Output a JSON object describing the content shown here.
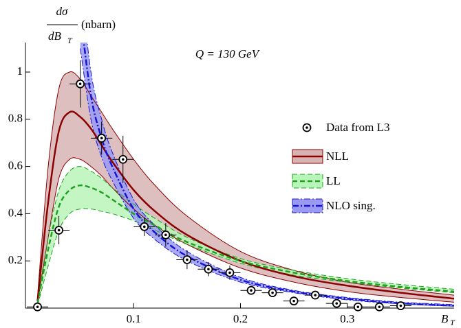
{
  "chart_data": {
    "type": "line",
    "ylabel": {
      "numerator": "dσ",
      "denominator": "dB",
      "denominator_sub": "T",
      "unit": "(nbarn)"
    },
    "xlabel": {
      "main": "B",
      "sub": "T"
    },
    "annotation": "Q = 130 GeV",
    "xlim": [
      -0.0013,
      0.4
    ],
    "ylim": [
      0,
      1.125
    ],
    "xticks": [
      0.1,
      0.2,
      0.3
    ],
    "yticks": [
      0.2,
      0.4,
      0.6,
      0.8,
      1
    ],
    "legend": "right",
    "x": [
      0.01,
      0.02,
      0.03,
      0.04,
      0.05,
      0.06,
      0.07,
      0.08,
      0.1,
      0.12,
      0.15,
      0.2,
      0.25,
      0.3,
      0.35,
      0.4
    ],
    "series": [
      {
        "name": "NLL",
        "color": "#8b0000",
        "band_color": "#d7b4b4",
        "dash": "none",
        "values": [
          0.03,
          0.45,
          0.75,
          0.83,
          0.81,
          0.76,
          0.69,
          0.62,
          0.5,
          0.41,
          0.31,
          0.2,
          0.135,
          0.095,
          0.065,
          0.04
        ],
        "upper": [
          0.05,
          0.6,
          0.93,
          1.0,
          0.97,
          0.9,
          0.83,
          0.76,
          0.63,
          0.52,
          0.39,
          0.24,
          0.16,
          0.11,
          0.08,
          0.055
        ],
        "lower": [
          0.02,
          0.3,
          0.55,
          0.63,
          0.63,
          0.6,
          0.56,
          0.51,
          0.42,
          0.35,
          0.27,
          0.17,
          0.11,
          0.07,
          0.045,
          0.025
        ]
      },
      {
        "name": "LL",
        "color": "#1fa01f",
        "band_color": "#b8f5b8",
        "dash": "7 4",
        "values": [
          0.02,
          0.25,
          0.43,
          0.5,
          0.52,
          0.51,
          0.49,
          0.46,
          0.4,
          0.35,
          0.28,
          0.2,
          0.15,
          0.115,
          0.09,
          0.07
        ],
        "upper": [
          0.03,
          0.3,
          0.5,
          0.58,
          0.6,
          0.58,
          0.55,
          0.51,
          0.44,
          0.38,
          0.3,
          0.21,
          0.16,
          0.125,
          0.1,
          0.08
        ],
        "lower": [
          0.01,
          0.18,
          0.33,
          0.4,
          0.42,
          0.42,
          0.41,
          0.4,
          0.37,
          0.33,
          0.27,
          0.19,
          0.14,
          0.11,
          0.085,
          0.065
        ]
      },
      {
        "name": "NLO sing.",
        "color": "#1414d2",
        "band_color": "#9a9af2",
        "dash": "9 3 2 3",
        "values": [
          null,
          null,
          null,
          null,
          1.25,
          0.9,
          0.72,
          0.6,
          0.42,
          0.32,
          0.22,
          0.12,
          0.07,
          0.04,
          0.02,
          0.01
        ],
        "upper": [
          null,
          null,
          null,
          null,
          1.4,
          1.0,
          0.8,
          0.66,
          0.46,
          0.35,
          0.24,
          0.13,
          0.075,
          0.045,
          0.025,
          0.015
        ],
        "lower": [
          null,
          null,
          null,
          null,
          1.1,
          0.8,
          0.64,
          0.54,
          0.38,
          0.29,
          0.2,
          0.11,
          0.065,
          0.035,
          0.018,
          0.008
        ]
      }
    ],
    "points": {
      "name": "Data from L3",
      "color": "#000000",
      "x": [
        0.01,
        0.03,
        0.05,
        0.07,
        0.09,
        0.11,
        0.13,
        0.15,
        0.17,
        0.19,
        0.21,
        0.23,
        0.25,
        0.27,
        0.29,
        0.31,
        0.33,
        0.35
      ],
      "xerr": [
        0.01,
        0.01,
        0.01,
        0.01,
        0.01,
        0.01,
        0.01,
        0.01,
        0.01,
        0.01,
        0.01,
        0.01,
        0.01,
        0.01,
        0.01,
        0.01,
        0.01,
        0.01
      ],
      "values": [
        0.005,
        0.33,
        0.95,
        0.72,
        0.63,
        0.345,
        0.31,
        0.205,
        0.165,
        0.15,
        0.075,
        0.065,
        0.03,
        0.055,
        0.02,
        0.005,
        0.005,
        0.01
      ],
      "yerr": [
        0.01,
        0.06,
        0.1,
        0.07,
        0.1,
        0.04,
        0.05,
        0.04,
        0.03,
        0.03,
        0.015,
        0.015,
        0.01,
        0.015,
        0.01,
        0.01,
        0.01,
        0.01
      ]
    }
  }
}
